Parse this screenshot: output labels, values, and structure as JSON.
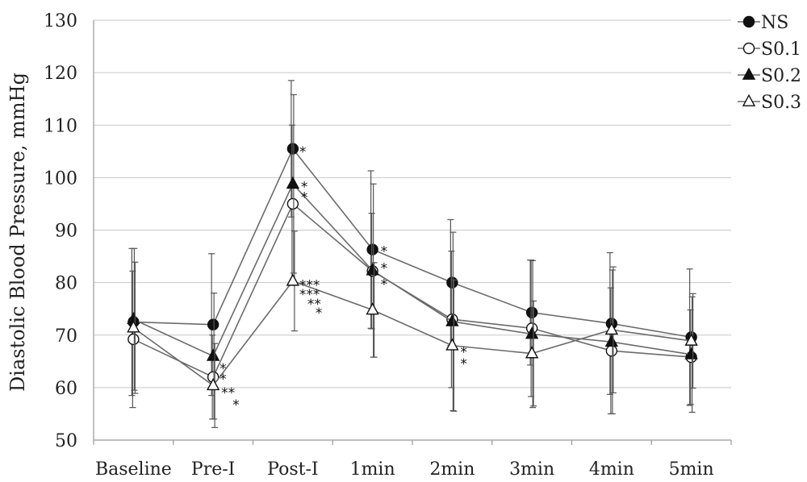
{
  "chart_data": {
    "type": "line",
    "title": "",
    "xlabel": "",
    "ylabel": "Diastolic Blood Pressure, mmHg",
    "ylim": [
      50,
      130
    ],
    "yticks": [
      50,
      60,
      70,
      80,
      90,
      100,
      110,
      120,
      130
    ],
    "grid": true,
    "legend_position": "top-right",
    "categories": [
      "Baseline",
      "Pre-I",
      "Post-I",
      "1min",
      "2min",
      "3min",
      "4min",
      "5min"
    ],
    "series": [
      {
        "name": "NS",
        "marker": "filled-circle",
        "values": [
          72.5,
          72,
          105.5,
          86.3,
          80,
          74.3,
          72.2,
          69.6
        ],
        "error": [
          14,
          13.5,
          13,
          15,
          12,
          10,
          13.5,
          13
        ]
      },
      {
        "name": "S0.1",
        "marker": "open-circle",
        "values": [
          69.2,
          62,
          95,
          82.2,
          73,
          71.3,
          67,
          65.8
        ],
        "error": [
          13,
          8,
          15,
          11,
          13,
          13,
          12,
          9
        ]
      },
      {
        "name": "S0.2",
        "marker": "filled-triangle",
        "values": [
          73,
          66,
          98.8,
          82.3,
          72.6,
          70.2,
          68.7,
          66.3
        ],
        "error": [
          13.5,
          12,
          17,
          16.5,
          17,
          14,
          13.7,
          11
        ]
      },
      {
        "name": "S0.3",
        "marker": "open-triangle",
        "values": [
          71.4,
          60.4,
          80.3,
          74.8,
          68,
          66.5,
          71,
          68.9
        ],
        "error": [
          12.5,
          8,
          9.5,
          9,
          12.5,
          10,
          12,
          9
        ]
      }
    ],
    "annotations": [
      {
        "category": "Pre-I",
        "value": 64.6,
        "text": "*"
      },
      {
        "category": "Pre-I",
        "value": 62.6,
        "text": "*"
      },
      {
        "category": "Pre-I",
        "value": 60.0,
        "text": "**"
      },
      {
        "category": "Pre-I",
        "value": 57.7,
        "text": "*"
      },
      {
        "category": "Post-I",
        "value": 105.9,
        "text": "*"
      },
      {
        "category": "Post-I",
        "value": 99.2,
        "text": "*"
      },
      {
        "category": "Post-I",
        "value": 97.2,
        "text": "*"
      },
      {
        "category": "Post-I",
        "value": 80.5,
        "text": "***"
      },
      {
        "category": "Post-I",
        "value": 78.7,
        "text": "***"
      },
      {
        "category": "Post-I",
        "value": 76.9,
        "text": "**"
      },
      {
        "category": "Post-I",
        "value": 75.2,
        "text": "*"
      },
      {
        "category": "1min",
        "value": 86.9,
        "text": "*"
      },
      {
        "category": "1min",
        "value": 83.7,
        "text": "*"
      },
      {
        "category": "1min",
        "value": 80.6,
        "text": "*"
      },
      {
        "category": "2min",
        "value": 67.7,
        "text": "*"
      },
      {
        "category": "2min",
        "value": 65.5,
        "text": "*"
      }
    ],
    "colors": {
      "line": "#6b6b6b",
      "marker": "#111111",
      "error_bar": "#555555",
      "grid": "#c8c8c8"
    }
  }
}
